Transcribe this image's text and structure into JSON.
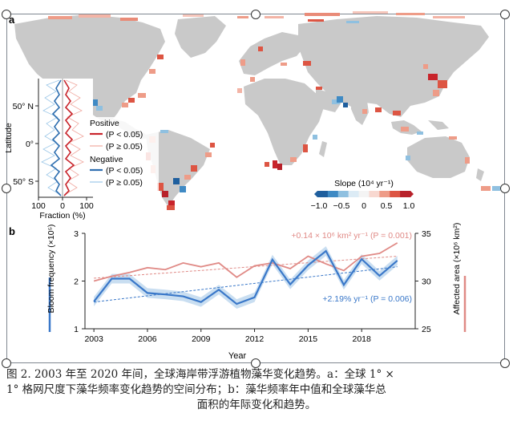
{
  "panel_a": {
    "label": "a",
    "inset": {
      "y_title": "Latitude",
      "y_ticks": [
        "50° N",
        "0°",
        "50° S"
      ],
      "x_ticks": [
        "100",
        "0",
        "100"
      ],
      "x_title": "Fraction (%)",
      "legend": {
        "positive_title": "Positive",
        "positive_sig": "(P < 0.05)",
        "positive_nonsig": "(P ≥ 0.05)",
        "negative_title": "Negative",
        "negative_sig": "(P < 0.05)",
        "negative_nonsig": "(P ≥ 0.05)"
      }
    },
    "colorbar": {
      "title": "Slope (10⁴ yr⁻¹)",
      "ticks": [
        "−1.0",
        "−0.5",
        "0",
        "0.5",
        "1.0"
      ],
      "colors": [
        "#1f5f9e",
        "#3f8ac4",
        "#8fc0e0",
        "#dcebf5",
        "#f4f4f4",
        "#f8d8d0",
        "#ee9c88",
        "#dd5543",
        "#b8212a"
      ]
    },
    "colors": {
      "land": "#c9c9c9",
      "positive": "#c8242b",
      "negative": "#2f6fb0"
    }
  },
  "panel_b": {
    "label": "b",
    "left_axis_title": "Bloom frequency (×10⁵)",
    "right_axis_title": "Affected area (×10⁶ km²)",
    "x_title": "Year",
    "area_annotation": "+0.14 × 10⁶ km² yr⁻¹ (P = 0.001)",
    "freq_annotation": "+2.19% yr⁻¹ (P = 0.006)",
    "colors": {
      "frequency": "#3a78c9",
      "band": "#bcd6ee",
      "area": "#e08a86"
    }
  },
  "chart_data": {
    "type": "line",
    "x": [
      2003,
      2004,
      2005,
      2006,
      2007,
      2008,
      2009,
      2010,
      2011,
      2012,
      2013,
      2014,
      2015,
      2016,
      2017,
      2018,
      2019,
      2020
    ],
    "x_ticks": [
      "2003",
      "2006",
      "2009",
      "2012",
      "2015",
      "2018"
    ],
    "y_left_ticks": [
      "1",
      "2",
      "3"
    ],
    "y_right_ticks": [
      "25",
      "30",
      "35"
    ],
    "ylim_left": [
      1,
      3
    ],
    "ylim_right": [
      25,
      35
    ],
    "series": [
      {
        "axis": "left",
        "values": [
          1.57,
          2.05,
          2.05,
          1.75,
          1.72,
          1.68,
          1.56,
          1.82,
          1.52,
          1.66,
          2.45,
          1.93,
          2.33,
          2.63,
          1.92,
          2.46,
          2.11,
          2.43
        ]
      },
      {
        "axis": "right",
        "values": [
          30.0,
          30.5,
          30.9,
          31.4,
          31.2,
          31.9,
          31.5,
          31.9,
          30.4,
          31.6,
          31.9,
          31.3,
          32.6,
          31.8,
          31.1,
          32.6,
          32.9,
          34.0
        ]
      }
    ],
    "trend_frequency": [
      1.56,
      2.3
    ],
    "trend_area": [
      30.3,
      32.6
    ]
  },
  "caption": {
    "line1": "图 2. 2003 年至 2020 年间，全球海岸带浮游植物藻华变化趋势。a：全球 1° ×",
    "line2": "1° 格网尺度下藻华频率变化趋势的空间分布；b：藻华频率年中值和全球藻华总",
    "line3": "面积的年际变化和趋势。"
  }
}
